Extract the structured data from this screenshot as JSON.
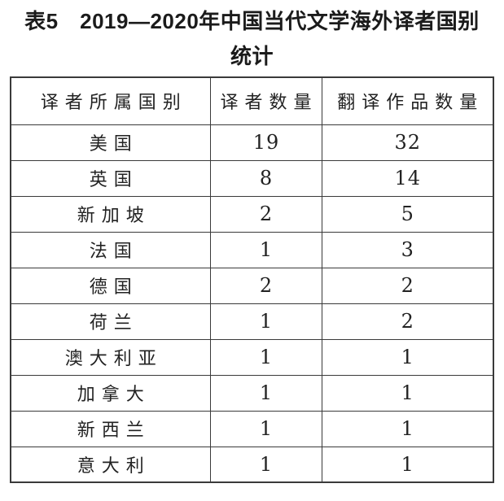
{
  "title": {
    "line1": "表5　2019—2020年中国当代文学海外译者国别",
    "line2": "统计"
  },
  "table": {
    "headers": [
      "译者所属国别",
      "译者数量",
      "翻译作品数量"
    ],
    "rows": [
      [
        "美国",
        "19",
        "32"
      ],
      [
        "英国",
        "8",
        "14"
      ],
      [
        "新加坡",
        "2",
        "5"
      ],
      [
        "法国",
        "1",
        "3"
      ],
      [
        "德国",
        "2",
        "2"
      ],
      [
        "荷兰",
        "1",
        "2"
      ],
      [
        "澳大利亚",
        "1",
        "1"
      ],
      [
        "加拿大",
        "1",
        "1"
      ],
      [
        "新西兰",
        "1",
        "1"
      ],
      [
        "意大利",
        "1",
        "1"
      ]
    ]
  },
  "chart_data": {
    "type": "table",
    "title": "表5 2019—2020年中国当代文学海外译者国别统计",
    "columns": [
      "译者所属国别",
      "译者数量",
      "翻译作品数量"
    ],
    "rows": [
      {
        "country": "美国",
        "translators": 19,
        "works": 32
      },
      {
        "country": "英国",
        "translators": 8,
        "works": 14
      },
      {
        "country": "新加坡",
        "translators": 2,
        "works": 5
      },
      {
        "country": "法国",
        "translators": 1,
        "works": 3
      },
      {
        "country": "德国",
        "translators": 2,
        "works": 2
      },
      {
        "country": "荷兰",
        "translators": 1,
        "works": 2
      },
      {
        "country": "澳大利亚",
        "translators": 1,
        "works": 1
      },
      {
        "country": "加拿大",
        "translators": 1,
        "works": 1
      },
      {
        "country": "新西兰",
        "translators": 1,
        "works": 1
      },
      {
        "country": "意大利",
        "translators": 1,
        "works": 1
      }
    ]
  },
  "colors": {
    "background": "#ffffff",
    "text": "#222222",
    "border": "#3a3a3a"
  }
}
